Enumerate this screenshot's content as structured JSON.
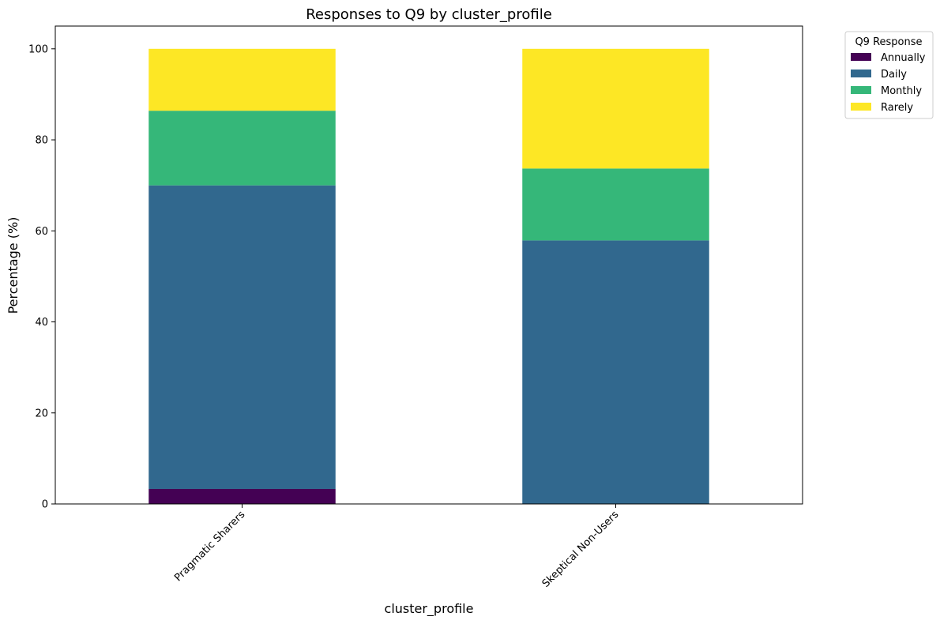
{
  "chart_data": {
    "type": "bar",
    "stacked": true,
    "title": "Responses to Q9 by cluster_profile",
    "xlabel": "cluster_profile",
    "ylabel": "Percentage (%)",
    "ylim": [
      0,
      105
    ],
    "yticks": [
      0,
      20,
      40,
      60,
      80,
      100
    ],
    "grid": false,
    "categories": [
      "Pragmatic Sharers",
      "Skeptical Non-Users"
    ],
    "legend": {
      "title": "Q9 Response",
      "placement": "outside-top-right"
    },
    "series": [
      {
        "name": "Annually",
        "color": "#440154",
        "values": [
          3.3,
          0.0
        ]
      },
      {
        "name": "Daily",
        "color": "#31688e",
        "values": [
          66.7,
          57.9
        ]
      },
      {
        "name": "Monthly",
        "color": "#35b779",
        "values": [
          16.4,
          15.8
        ]
      },
      {
        "name": "Rarely",
        "color": "#fde725",
        "values": [
          13.6,
          26.3
        ]
      }
    ]
  }
}
